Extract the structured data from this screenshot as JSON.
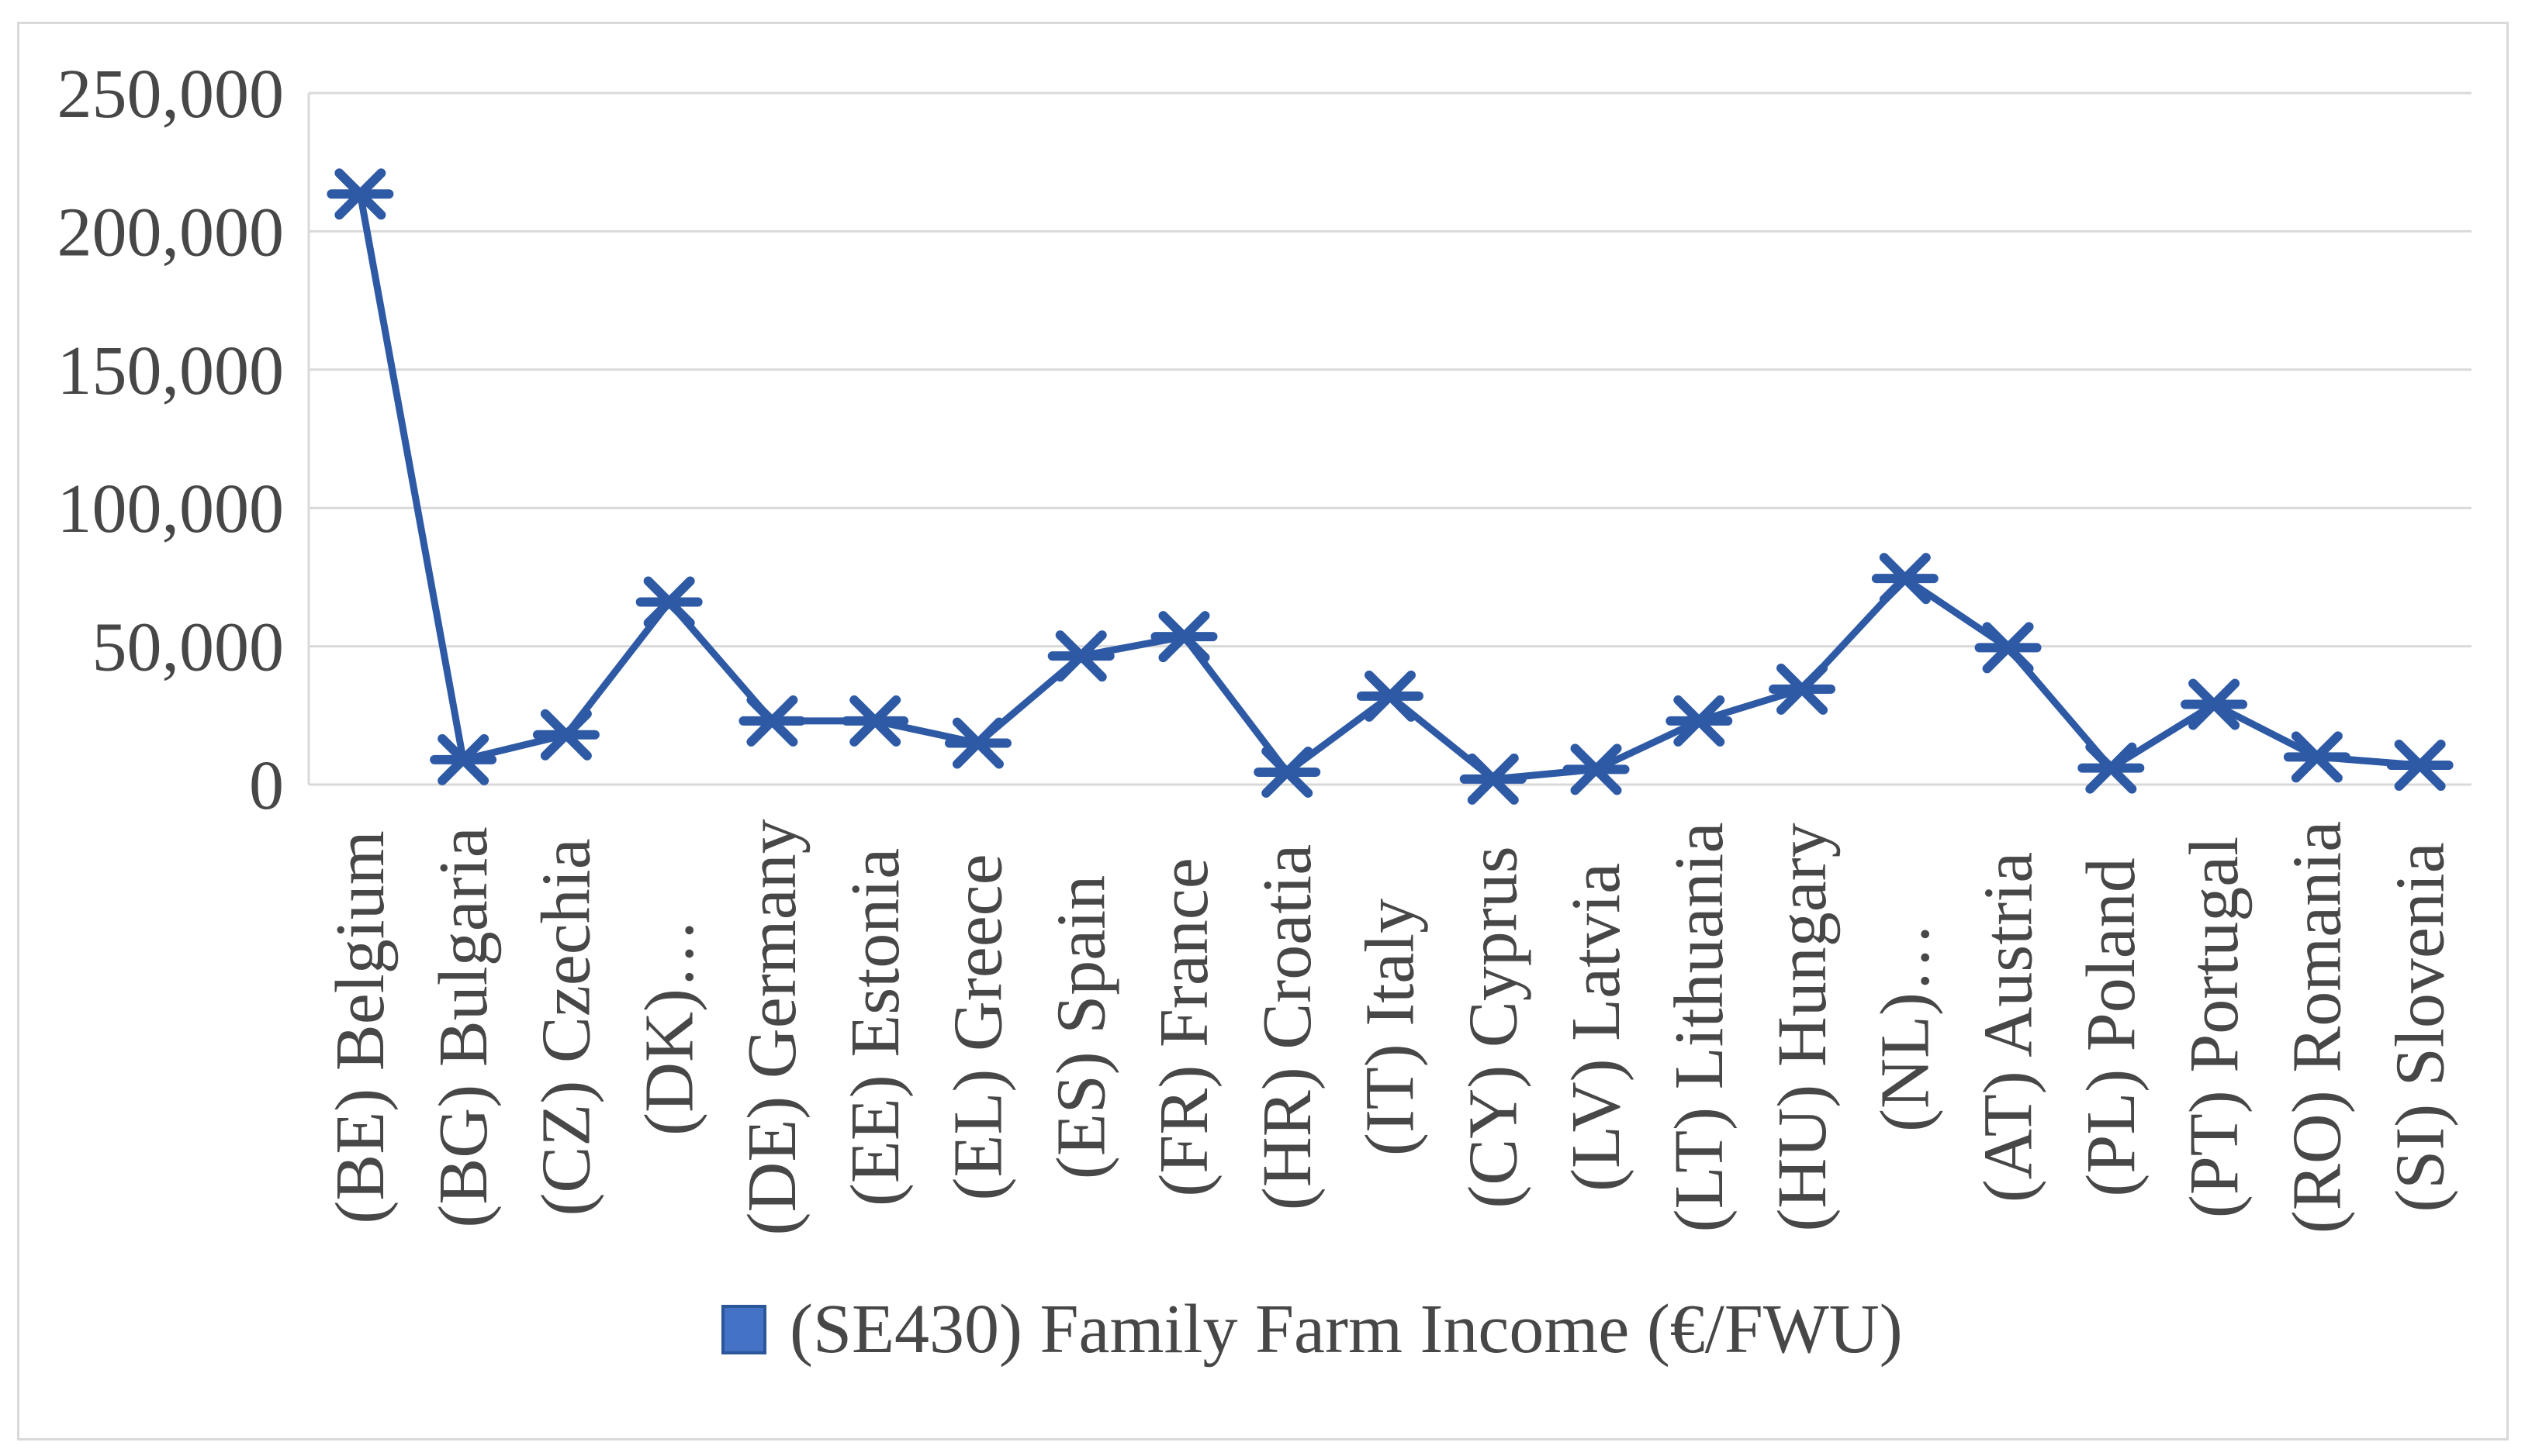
{
  "figure": {
    "background": "#FFFFFF",
    "border_color": "#D9D9D9"
  },
  "legend": {
    "label": "(SE430) Family Farm Income (€/FWU)",
    "swatch_color": "#4472C4",
    "swatch_border": "#2B579A"
  },
  "chart_data": {
    "type": "line",
    "title": "",
    "xlabel": "",
    "ylabel": "",
    "categories": [
      "(BE) Belgium",
      "(BG) Bulgaria",
      "(CZ) Czechia",
      "(DK)…",
      "(DE) Germany",
      "(EE) Estonia",
      "(EL) Greece",
      "(ES) Spain",
      "(FR) France",
      "(HR) Croatia",
      "(IT) Italy",
      "(CY) Cyprus",
      "(LV) Latvia",
      "(LT) Lithuania",
      "(HU) Hungary",
      "(NL)…",
      "(AT) Austria",
      "(PL) Poland",
      "(PT) Portugal",
      "(RO) Romania",
      "(SI) Slovenia"
    ],
    "series": [
      {
        "name": "(SE430) Family Farm Income (€/FWU)",
        "values": [
          213500,
          9000,
          18000,
          66000,
          23000,
          23000,
          15000,
          46500,
          53500,
          4500,
          32000,
          2000,
          5500,
          23000,
          34500,
          74500,
          49500,
          6000,
          29000,
          10000,
          7000
        ]
      }
    ],
    "ylim": [
      0,
      250000
    ],
    "y_tick_interval": 50000,
    "y_tick_labels": [
      "0",
      "50,000",
      "100,000",
      "150,000",
      "200,000",
      "250,000"
    ],
    "grid": true,
    "legend_position": "bottom",
    "marker": "asterisk-x",
    "line_color": "#2E5AA5",
    "grid_color": "#D9D9D9",
    "axis_color": "#D9D9D9",
    "text_color": "#474747"
  }
}
